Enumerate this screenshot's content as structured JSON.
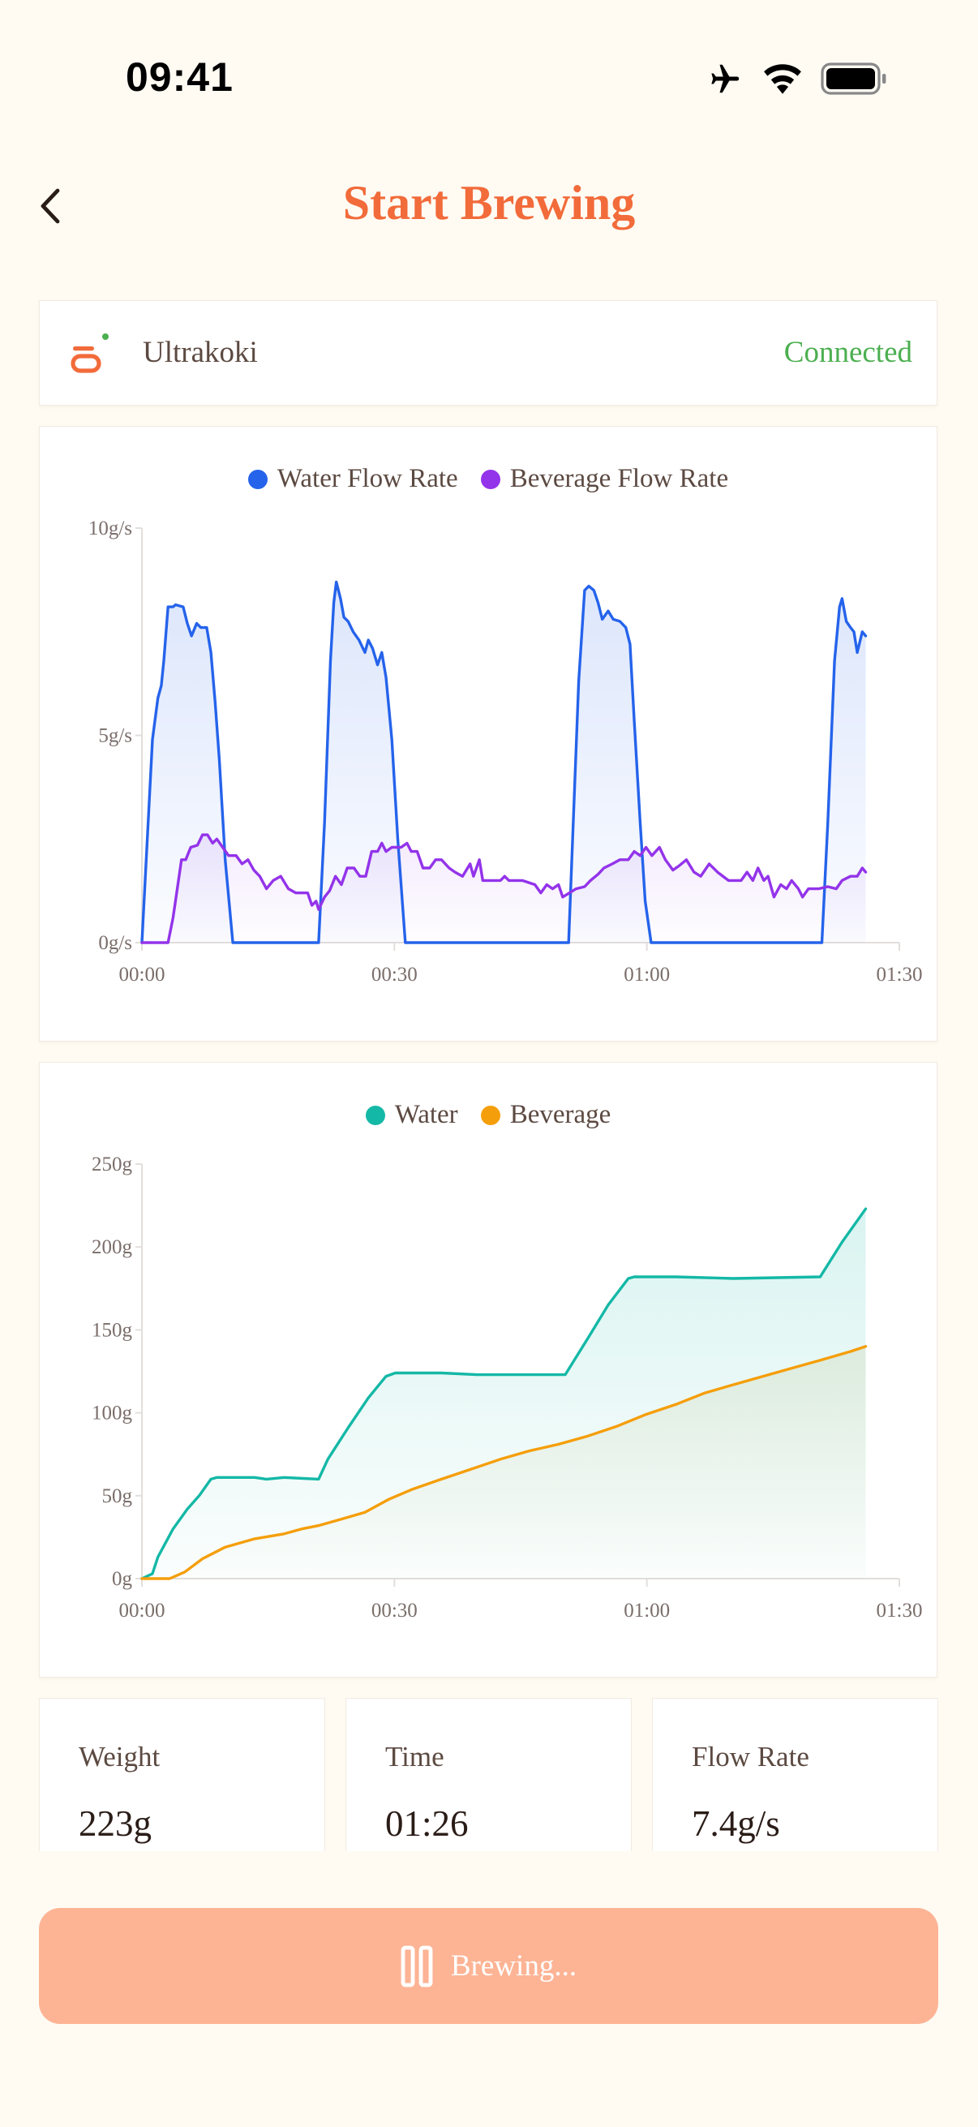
{
  "status_bar": {
    "time": "09:41",
    "icons": [
      "airplane-icon",
      "wifi-icon",
      "battery-icon"
    ]
  },
  "header": {
    "title": "Start Brewing",
    "back_icon": "chevron-left-icon"
  },
  "device": {
    "name": "Ultrakoki",
    "status": "Connected",
    "status_color": "#4CAF50",
    "icon": "scale-icon"
  },
  "stats": [
    {
      "label": "Weight",
      "value": "223g"
    },
    {
      "label": "Time",
      "value": "01:26"
    },
    {
      "label": "Flow Rate",
      "value": "7.4g/s"
    }
  ],
  "action_button": {
    "label": "Brewing...",
    "icon": "pause-icon",
    "color": "#FDB495"
  },
  "colors": {
    "accent": "#F26B3A",
    "background": "#FFFBF3"
  },
  "chart_data": [
    {
      "type": "area",
      "title": "",
      "xlabel": "",
      "ylabel": "",
      "xlim": [
        0,
        90
      ],
      "ylim": [
        0,
        10
      ],
      "x_ticks": [
        "00:00",
        "00:30",
        "01:00",
        "01:30"
      ],
      "y_ticks": [
        "0g/s",
        "5g/s",
        "10g/s"
      ],
      "grid": false,
      "legend": "top-center",
      "series": [
        {
          "name": "Water Flow Rate",
          "color": "#2563EB",
          "points": [
            [
              0,
              0
            ],
            [
              1.25,
              4.9
            ],
            [
              1.9,
              5.9
            ],
            [
              2.3,
              6.2
            ],
            [
              2.6,
              6.8
            ],
            [
              3.1,
              8.1
            ],
            [
              3.7,
              8.1
            ],
            [
              4.0,
              8.15
            ],
            [
              4.9,
              8.1
            ],
            [
              5.4,
              7.7
            ],
            [
              5.9,
              7.4
            ],
            [
              6.5,
              7.7
            ],
            [
              7.0,
              7.6
            ],
            [
              7.7,
              7.6
            ],
            [
              8.2,
              7.0
            ],
            [
              8.7,
              5.8
            ],
            [
              9.2,
              4.4
            ],
            [
              9.9,
              2.0
            ],
            [
              10.8,
              0
            ],
            [
              21.0,
              0
            ],
            [
              21.7,
              2.9
            ],
            [
              22.4,
              6.8
            ],
            [
              22.8,
              8.2
            ],
            [
              23.1,
              8.7
            ],
            [
              23.6,
              8.3
            ],
            [
              24.0,
              7.85
            ],
            [
              24.5,
              7.75
            ],
            [
              25.1,
              7.5
            ],
            [
              25.8,
              7.3
            ],
            [
              26.5,
              7.0
            ],
            [
              26.9,
              7.3
            ],
            [
              27.4,
              7.1
            ],
            [
              28.0,
              6.7
            ],
            [
              28.5,
              7.0
            ],
            [
              29.0,
              6.4
            ],
            [
              29.7,
              4.9
            ],
            [
              30.4,
              2.5
            ],
            [
              31.3,
              0
            ],
            [
              50.7,
              0
            ],
            [
              51.25,
              2.9
            ],
            [
              51.9,
              6.3
            ],
            [
              52.6,
              8.5
            ],
            [
              53.1,
              8.6
            ],
            [
              53.7,
              8.5
            ],
            [
              54.2,
              8.2
            ],
            [
              54.7,
              7.8
            ],
            [
              55.4,
              8.0
            ],
            [
              56.0,
              7.8
            ],
            [
              56.8,
              7.75
            ],
            [
              57.5,
              7.6
            ],
            [
              58.0,
              7.2
            ],
            [
              58.5,
              5.35
            ],
            [
              59.2,
              2.9
            ],
            [
              59.8,
              1.0
            ],
            [
              60.5,
              0
            ],
            [
              80.8,
              0
            ],
            [
              81.5,
              2.9
            ],
            [
              82.3,
              6.8
            ],
            [
              82.9,
              8.1
            ],
            [
              83.2,
              8.3
            ],
            [
              83.7,
              7.75
            ],
            [
              84.2,
              7.6
            ],
            [
              84.6,
              7.5
            ],
            [
              85.0,
              7.0
            ],
            [
              85.6,
              7.5
            ],
            [
              86.0,
              7.4
            ]
          ]
        },
        {
          "name": "Beverage Flow Rate",
          "color": "#9333EA",
          "points": [
            [
              0,
              0
            ],
            [
              3.1,
              0
            ],
            [
              3.7,
              0.6
            ],
            [
              4.2,
              1.3
            ],
            [
              4.7,
              2.0
            ],
            [
              5.2,
              2.0
            ],
            [
              5.8,
              2.3
            ],
            [
              6.6,
              2.35
            ],
            [
              7.2,
              2.6
            ],
            [
              7.8,
              2.6
            ],
            [
              8.4,
              2.4
            ],
            [
              8.9,
              2.5
            ],
            [
              9.6,
              2.3
            ],
            [
              10.3,
              2.1
            ],
            [
              11.2,
              2.1
            ],
            [
              11.9,
              1.9
            ],
            [
              12.6,
              2.0
            ],
            [
              13.3,
              1.75
            ],
            [
              14.0,
              1.6
            ],
            [
              14.8,
              1.3
            ],
            [
              15.6,
              1.5
            ],
            [
              16.5,
              1.6
            ],
            [
              17.4,
              1.3
            ],
            [
              18.3,
              1.2
            ],
            [
              19.7,
              1.2
            ],
            [
              20.2,
              0.9
            ],
            [
              20.7,
              1.0
            ],
            [
              21.0,
              0.8
            ],
            [
              21.7,
              1.1
            ],
            [
              22.3,
              1.25
            ],
            [
              23.0,
              1.6
            ],
            [
              23.7,
              1.4
            ],
            [
              24.4,
              1.8
            ],
            [
              25.2,
              1.8
            ],
            [
              25.9,
              1.6
            ],
            [
              26.6,
              1.6
            ],
            [
              27.3,
              2.2
            ],
            [
              28.0,
              2.2
            ],
            [
              28.5,
              2.4
            ],
            [
              29.0,
              2.2
            ],
            [
              29.7,
              2.3
            ],
            [
              30.8,
              2.3
            ],
            [
              31.5,
              2.4
            ],
            [
              32.0,
              2.2
            ],
            [
              32.7,
              2.2
            ],
            [
              33.4,
              1.8
            ],
            [
              34.2,
              1.8
            ],
            [
              34.9,
              2.0
            ],
            [
              35.6,
              2.0
            ],
            [
              36.5,
              1.8
            ],
            [
              37.2,
              1.7
            ],
            [
              38.1,
              1.6
            ],
            [
              39.0,
              1.9
            ],
            [
              39.4,
              1.6
            ],
            [
              40.1,
              2.0
            ],
            [
              40.5,
              1.5
            ],
            [
              42.6,
              1.5
            ],
            [
              43.1,
              1.6
            ],
            [
              43.6,
              1.5
            ],
            [
              45.2,
              1.5
            ],
            [
              46.7,
              1.4
            ],
            [
              47.4,
              1.2
            ],
            [
              48.1,
              1.4
            ],
            [
              48.8,
              1.3
            ],
            [
              49.5,
              1.4
            ],
            [
              50.0,
              1.1
            ],
            [
              50.8,
              1.2
            ],
            [
              51.6,
              1.3
            ],
            [
              52.6,
              1.35
            ],
            [
              53.3,
              1.5
            ],
            [
              54.2,
              1.65
            ],
            [
              54.9,
              1.8
            ],
            [
              55.9,
              1.9
            ],
            [
              56.8,
              2.0
            ],
            [
              57.8,
              2.0
            ],
            [
              58.5,
              2.2
            ],
            [
              59.2,
              2.1
            ],
            [
              59.9,
              2.3
            ],
            [
              60.6,
              2.1
            ],
            [
              61.5,
              2.3
            ],
            [
              62.2,
              2.0
            ],
            [
              63.1,
              1.75
            ],
            [
              63.8,
              1.85
            ],
            [
              64.7,
              2.0
            ],
            [
              65.6,
              1.7
            ],
            [
              66.4,
              1.6
            ],
            [
              67.4,
              1.9
            ],
            [
              68.4,
              1.7
            ],
            [
              69.7,
              1.5
            ],
            [
              71.2,
              1.5
            ],
            [
              71.9,
              1.7
            ],
            [
              72.6,
              1.5
            ],
            [
              73.2,
              1.8
            ],
            [
              73.9,
              1.5
            ],
            [
              74.4,
              1.6
            ],
            [
              75.1,
              1.1
            ],
            [
              75.9,
              1.4
            ],
            [
              76.6,
              1.3
            ],
            [
              77.2,
              1.5
            ],
            [
              78.0,
              1.3
            ],
            [
              78.5,
              1.1
            ],
            [
              79.2,
              1.3
            ],
            [
              80.4,
              1.3
            ],
            [
              81.5,
              1.35
            ],
            [
              82.5,
              1.3
            ],
            [
              83.2,
              1.5
            ],
            [
              84.2,
              1.6
            ],
            [
              85.0,
              1.6
            ],
            [
              85.6,
              1.8
            ],
            [
              86.0,
              1.7
            ]
          ]
        }
      ]
    },
    {
      "type": "area",
      "title": "",
      "xlabel": "",
      "ylabel": "",
      "xlim": [
        0,
        90
      ],
      "ylim": [
        0,
        250
      ],
      "x_ticks": [
        "00:00",
        "00:30",
        "01:00",
        "01:30"
      ],
      "y_ticks": [
        "0g",
        "50g",
        "100g",
        "150g",
        "200g",
        "250g"
      ],
      "grid": false,
      "legend": "top-center",
      "series": [
        {
          "name": "Water",
          "color": "#14B8A6",
          "points": [
            [
              0,
              0
            ],
            [
              1.25,
              3
            ],
            [
              1.9,
              13
            ],
            [
              3.7,
              30
            ],
            [
              5.4,
              42
            ],
            [
              6.8,
              50
            ],
            [
              8.2,
              60
            ],
            [
              8.9,
              61
            ],
            [
              13.4,
              61
            ],
            [
              14.8,
              60
            ],
            [
              16.9,
              61
            ],
            [
              21.0,
              60
            ],
            [
              22.1,
              72
            ],
            [
              24.5,
              91
            ],
            [
              26.9,
              109
            ],
            [
              29.0,
              122
            ],
            [
              30.1,
              124
            ],
            [
              35.6,
              124
            ],
            [
              39.8,
              123
            ],
            [
              50.3,
              123
            ],
            [
              53.0,
              145
            ],
            [
              55.4,
              165
            ],
            [
              57.8,
              181
            ],
            [
              58.5,
              182
            ],
            [
              63.4,
              182
            ],
            [
              70.3,
              181
            ],
            [
              80.6,
              182
            ],
            [
              83.2,
              203
            ],
            [
              86.0,
              223
            ]
          ]
        },
        {
          "name": "Beverage",
          "color": "#F59E0B",
          "points": [
            [
              0,
              0
            ],
            [
              3.3,
              0
            ],
            [
              5.1,
              4
            ],
            [
              7.2,
              12
            ],
            [
              9.9,
              19
            ],
            [
              13.4,
              24
            ],
            [
              16.9,
              27
            ],
            [
              19.0,
              30
            ],
            [
              21.0,
              32
            ],
            [
              23.8,
              36
            ],
            [
              26.5,
              40
            ],
            [
              29.4,
              48
            ],
            [
              32.2,
              54
            ],
            [
              35.6,
              60
            ],
            [
              39.1,
              66
            ],
            [
              42.6,
              72
            ],
            [
              46.0,
              77
            ],
            [
              49.5,
              81
            ],
            [
              53.0,
              86
            ],
            [
              56.5,
              92
            ],
            [
              59.9,
              99
            ],
            [
              63.4,
              105
            ],
            [
              66.9,
              112
            ],
            [
              70.3,
              117
            ],
            [
              73.8,
              122
            ],
            [
              77.3,
              127
            ],
            [
              80.8,
              132
            ],
            [
              84.2,
              137
            ],
            [
              86.0,
              140
            ]
          ]
        }
      ]
    }
  ]
}
